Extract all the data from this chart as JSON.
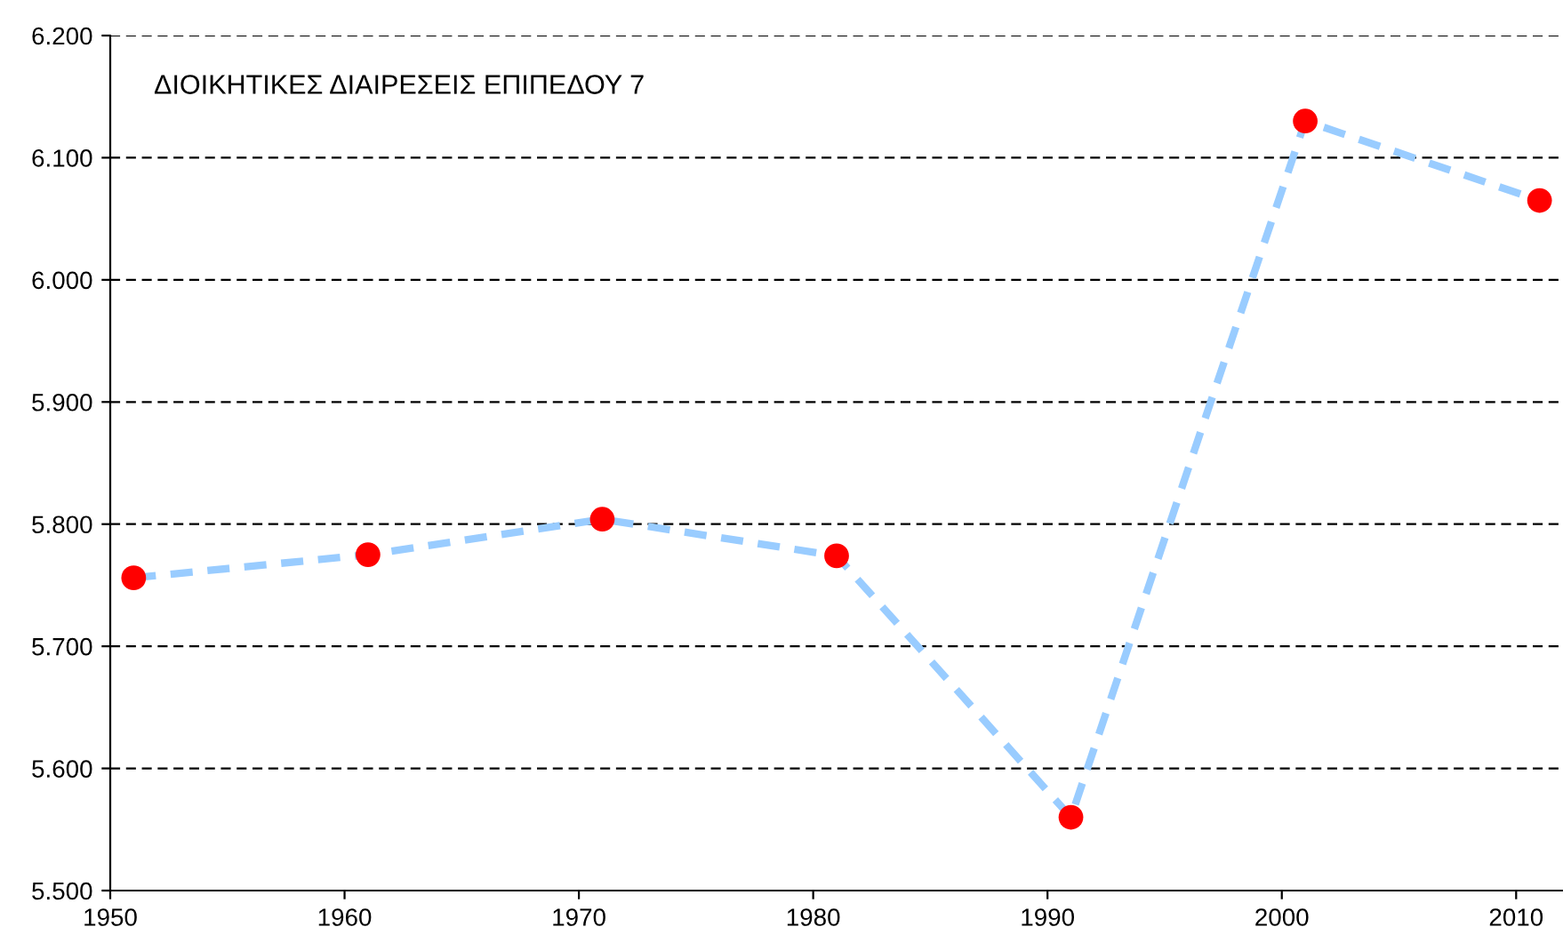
{
  "chart_data": {
    "type": "line",
    "title": "ΔΙΟΙΚΗΤΙΚΕΣ ΔΙΑΙΡΕΣΕΙΣ ΕΠΙΠΕΔΟΥ 7",
    "x": [
      1951,
      1961,
      1971,
      1981,
      1991,
      2001,
      2011
    ],
    "series": [
      {
        "color": "#99ccff",
        "colors": [
          "#ff0000",
          "#ff0000",
          "#ff0000",
          "#ff0000",
          "#ff0000",
          "#ff0000",
          "#ff0000"
        ],
        "values": [
          5756,
          5775,
          5804,
          5774,
          5560,
          6130,
          6065
        ]
      }
    ],
    "xlim": [
      1950,
      2012
    ],
    "xticks": [
      1950,
      1960,
      1970,
      1980,
      1990,
      2000,
      2010
    ],
    "ylim": [
      5500,
      6200
    ],
    "yticks": [
      {
        "value": 5500,
        "label": "5.500"
      },
      {
        "value": 5600,
        "label": "5.600"
      },
      {
        "value": 5700,
        "label": "5.700"
      },
      {
        "value": 5800,
        "label": "5.800"
      },
      {
        "value": 5900,
        "label": "5.900"
      },
      {
        "value": 6000,
        "label": "6.000"
      },
      {
        "value": 6100,
        "label": "6.100"
      },
      {
        "value": 6200,
        "label": "6.200"
      }
    ],
    "grid": "y",
    "marker": "circle",
    "line_style": "dashed",
    "legend": false
  }
}
